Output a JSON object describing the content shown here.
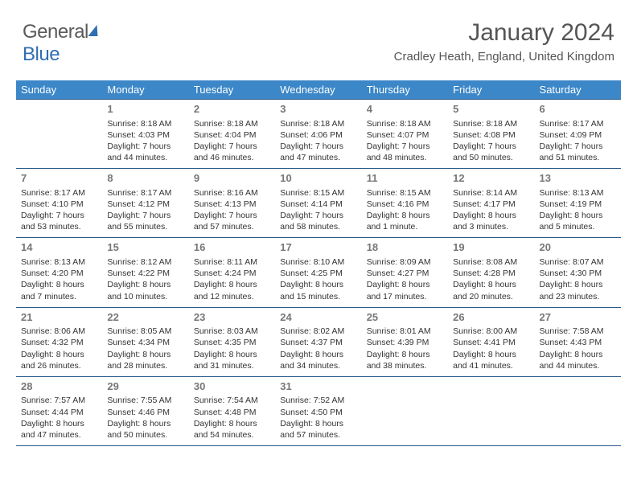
{
  "logo": {
    "part1": "General",
    "part2": "Blue"
  },
  "header": {
    "month": "January 2024",
    "location": "Cradley Heath, England, United Kingdom"
  },
  "style": {
    "header_bg": "#3b87c8",
    "header_fg": "#ffffff",
    "rule_color": "#2a5a8a",
    "daynum_color": "#777777",
    "text_color": "#333333",
    "title_color": "#555555",
    "logo_gray": "#5a5a5a",
    "logo_blue": "#2f6fb3",
    "body_font_size_pt": 10.5,
    "header_font_size_pt": 13,
    "title_font_size_pt": 30,
    "location_font_size_pt": 15
  },
  "weekdays": [
    "Sunday",
    "Monday",
    "Tuesday",
    "Wednesday",
    "Thursday",
    "Friday",
    "Saturday"
  ],
  "weeks": [
    [
      null,
      {
        "n": "1",
        "sr": "Sunrise: 8:18 AM",
        "ss": "Sunset: 4:03 PM",
        "d1": "Daylight: 7 hours",
        "d2": "and 44 minutes."
      },
      {
        "n": "2",
        "sr": "Sunrise: 8:18 AM",
        "ss": "Sunset: 4:04 PM",
        "d1": "Daylight: 7 hours",
        "d2": "and 46 minutes."
      },
      {
        "n": "3",
        "sr": "Sunrise: 8:18 AM",
        "ss": "Sunset: 4:06 PM",
        "d1": "Daylight: 7 hours",
        "d2": "and 47 minutes."
      },
      {
        "n": "4",
        "sr": "Sunrise: 8:18 AM",
        "ss": "Sunset: 4:07 PM",
        "d1": "Daylight: 7 hours",
        "d2": "and 48 minutes."
      },
      {
        "n": "5",
        "sr": "Sunrise: 8:18 AM",
        "ss": "Sunset: 4:08 PM",
        "d1": "Daylight: 7 hours",
        "d2": "and 50 minutes."
      },
      {
        "n": "6",
        "sr": "Sunrise: 8:17 AM",
        "ss": "Sunset: 4:09 PM",
        "d1": "Daylight: 7 hours",
        "d2": "and 51 minutes."
      }
    ],
    [
      {
        "n": "7",
        "sr": "Sunrise: 8:17 AM",
        "ss": "Sunset: 4:10 PM",
        "d1": "Daylight: 7 hours",
        "d2": "and 53 minutes."
      },
      {
        "n": "8",
        "sr": "Sunrise: 8:17 AM",
        "ss": "Sunset: 4:12 PM",
        "d1": "Daylight: 7 hours",
        "d2": "and 55 minutes."
      },
      {
        "n": "9",
        "sr": "Sunrise: 8:16 AM",
        "ss": "Sunset: 4:13 PM",
        "d1": "Daylight: 7 hours",
        "d2": "and 57 minutes."
      },
      {
        "n": "10",
        "sr": "Sunrise: 8:15 AM",
        "ss": "Sunset: 4:14 PM",
        "d1": "Daylight: 7 hours",
        "d2": "and 58 minutes."
      },
      {
        "n": "11",
        "sr": "Sunrise: 8:15 AM",
        "ss": "Sunset: 4:16 PM",
        "d1": "Daylight: 8 hours",
        "d2": "and 1 minute."
      },
      {
        "n": "12",
        "sr": "Sunrise: 8:14 AM",
        "ss": "Sunset: 4:17 PM",
        "d1": "Daylight: 8 hours",
        "d2": "and 3 minutes."
      },
      {
        "n": "13",
        "sr": "Sunrise: 8:13 AM",
        "ss": "Sunset: 4:19 PM",
        "d1": "Daylight: 8 hours",
        "d2": "and 5 minutes."
      }
    ],
    [
      {
        "n": "14",
        "sr": "Sunrise: 8:13 AM",
        "ss": "Sunset: 4:20 PM",
        "d1": "Daylight: 8 hours",
        "d2": "and 7 minutes."
      },
      {
        "n": "15",
        "sr": "Sunrise: 8:12 AM",
        "ss": "Sunset: 4:22 PM",
        "d1": "Daylight: 8 hours",
        "d2": "and 10 minutes."
      },
      {
        "n": "16",
        "sr": "Sunrise: 8:11 AM",
        "ss": "Sunset: 4:24 PM",
        "d1": "Daylight: 8 hours",
        "d2": "and 12 minutes."
      },
      {
        "n": "17",
        "sr": "Sunrise: 8:10 AM",
        "ss": "Sunset: 4:25 PM",
        "d1": "Daylight: 8 hours",
        "d2": "and 15 minutes."
      },
      {
        "n": "18",
        "sr": "Sunrise: 8:09 AM",
        "ss": "Sunset: 4:27 PM",
        "d1": "Daylight: 8 hours",
        "d2": "and 17 minutes."
      },
      {
        "n": "19",
        "sr": "Sunrise: 8:08 AM",
        "ss": "Sunset: 4:28 PM",
        "d1": "Daylight: 8 hours",
        "d2": "and 20 minutes."
      },
      {
        "n": "20",
        "sr": "Sunrise: 8:07 AM",
        "ss": "Sunset: 4:30 PM",
        "d1": "Daylight: 8 hours",
        "d2": "and 23 minutes."
      }
    ],
    [
      {
        "n": "21",
        "sr": "Sunrise: 8:06 AM",
        "ss": "Sunset: 4:32 PM",
        "d1": "Daylight: 8 hours",
        "d2": "and 26 minutes."
      },
      {
        "n": "22",
        "sr": "Sunrise: 8:05 AM",
        "ss": "Sunset: 4:34 PM",
        "d1": "Daylight: 8 hours",
        "d2": "and 28 minutes."
      },
      {
        "n": "23",
        "sr": "Sunrise: 8:03 AM",
        "ss": "Sunset: 4:35 PM",
        "d1": "Daylight: 8 hours",
        "d2": "and 31 minutes."
      },
      {
        "n": "24",
        "sr": "Sunrise: 8:02 AM",
        "ss": "Sunset: 4:37 PM",
        "d1": "Daylight: 8 hours",
        "d2": "and 34 minutes."
      },
      {
        "n": "25",
        "sr": "Sunrise: 8:01 AM",
        "ss": "Sunset: 4:39 PM",
        "d1": "Daylight: 8 hours",
        "d2": "and 38 minutes."
      },
      {
        "n": "26",
        "sr": "Sunrise: 8:00 AM",
        "ss": "Sunset: 4:41 PM",
        "d1": "Daylight: 8 hours",
        "d2": "and 41 minutes."
      },
      {
        "n": "27",
        "sr": "Sunrise: 7:58 AM",
        "ss": "Sunset: 4:43 PM",
        "d1": "Daylight: 8 hours",
        "d2": "and 44 minutes."
      }
    ],
    [
      {
        "n": "28",
        "sr": "Sunrise: 7:57 AM",
        "ss": "Sunset: 4:44 PM",
        "d1": "Daylight: 8 hours",
        "d2": "and 47 minutes."
      },
      {
        "n": "29",
        "sr": "Sunrise: 7:55 AM",
        "ss": "Sunset: 4:46 PM",
        "d1": "Daylight: 8 hours",
        "d2": "and 50 minutes."
      },
      {
        "n": "30",
        "sr": "Sunrise: 7:54 AM",
        "ss": "Sunset: 4:48 PM",
        "d1": "Daylight: 8 hours",
        "d2": "and 54 minutes."
      },
      {
        "n": "31",
        "sr": "Sunrise: 7:52 AM",
        "ss": "Sunset: 4:50 PM",
        "d1": "Daylight: 8 hours",
        "d2": "and 57 minutes."
      },
      null,
      null,
      null
    ]
  ]
}
